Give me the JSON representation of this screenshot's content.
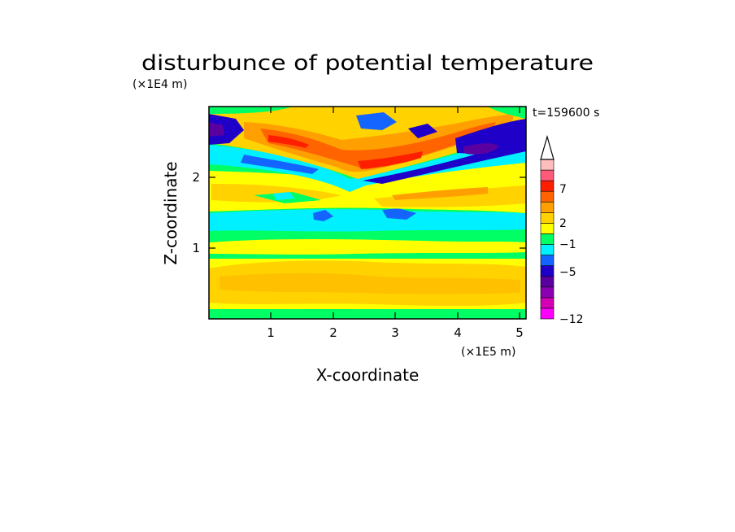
{
  "chart_data": {
    "type": "heatmap",
    "title": "disturbunce of potential temperature",
    "time_label": "t=159600 s",
    "xlabel": "X-coordinate",
    "ylabel": "Z-coordinate",
    "x_unit": "(×1E5 m)",
    "y_unit": "(×1E4 m)",
    "xlim": [
      0,
      5.1
    ],
    "ylim": [
      0,
      2.95
    ],
    "x_ticks": [
      "1",
      "2",
      "3",
      "4",
      "5"
    ],
    "y_ticks": [
      "1",
      "2"
    ],
    "colorbar": {
      "levels": [
        -12,
        -9,
        -7,
        -5,
        -3,
        -1,
        0,
        1,
        2,
        3,
        5,
        7,
        9,
        12
      ],
      "labels": [
        "7",
        "2",
        "−1",
        "−5",
        "−12"
      ],
      "colors": [
        "#ff00ff",
        "#d400b4",
        "#8c00b4",
        "#5a00a0",
        "#1e00c8",
        "#1464ff",
        "#00f0ff",
        "#00ff64",
        "#ffff00",
        "#ffd200",
        "#ffa000",
        "#ff6400",
        "#ff1e00",
        "#ff5a78",
        "#ffbebe"
      ],
      "extend": "max"
    }
  }
}
